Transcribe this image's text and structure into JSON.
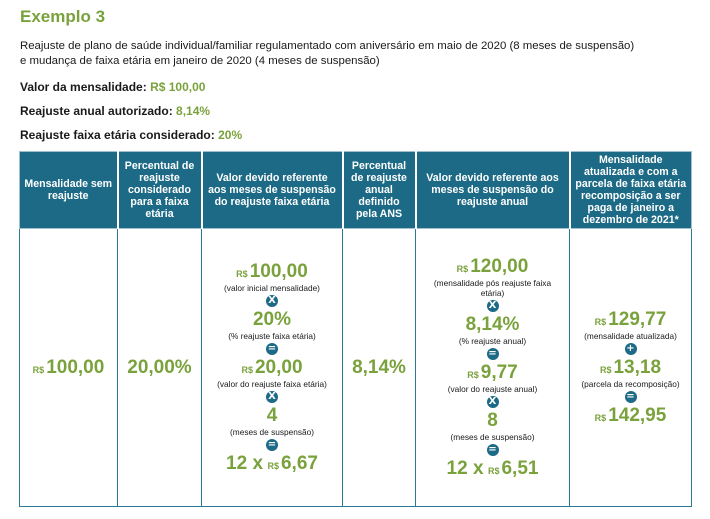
{
  "title": "Exemplo 3",
  "description_line1": "Reajuste de plano de saúde individual/familiar regulamentado com aniversário em maio de 2020 (8 meses de suspensão)",
  "description_line2": "e mudança de faixa etária em janeiro de 2020 (4 meses de suspensão)",
  "info": [
    {
      "label": "Valor da mensalidade:",
      "value": "R$ 100,00"
    },
    {
      "label": "Reajuste anual autorizado:",
      "value": "8,14%"
    },
    {
      "label": "Reajuste faixa etária considerado:",
      "value": "20%"
    }
  ],
  "headers": [
    "Mensalidade sem reajuste",
    "Percentual de reajuste considerado para a faixa etária",
    "Valor devido referente aos meses de suspensão do reajuste faixa etária",
    "Percentual de reajuste anual definido pela ANS",
    "Valor devido referente aos meses de suspensão do reajuste anual",
    "Mensalidade atualizada e com a parcela de faixa etária recomposição a ser paga de janeiro a dezembro de 2021*"
  ],
  "currency": "R$",
  "col1_value": "100,00",
  "col2_value": "20,00%",
  "col3": {
    "v1": "100,00",
    "c1": "(valor inicial mensalidade)",
    "op1": "X",
    "v2": "20%",
    "c2": "(% reajuste faixa etária)",
    "op2": "=",
    "v3": "20,00",
    "c3": "(valor do reajuste faixa etária)",
    "op3": "X",
    "v4": "4",
    "c4": "(meses de suspensão)",
    "op4": "=",
    "mult": "12 x",
    "result": "6,67"
  },
  "col4_value": "8,14%",
  "col5": {
    "v1": "120,00",
    "c1a": "(mensalidade pós reajuste faixa",
    "c1b": "etária)",
    "op1": "X",
    "v2": "8,14%",
    "c2": "(% reajuste anual)",
    "op2": "=",
    "v3": "9,77",
    "c3": "(valor do reajuste anual)",
    "op3": "X",
    "v4": "8",
    "c4": "(meses de suspensão)",
    "op4": "=",
    "mult": "12 x",
    "result": "6,51"
  },
  "col6": {
    "v1": "129,77",
    "c1": "(mensalidade atualizada)",
    "op1": "+",
    "v2": "13,18",
    "c2": "(parcela da recomposição)",
    "op2": "=",
    "v3": "142,95"
  },
  "colors": {
    "green": "#7aa23c",
    "header_blue": "#1c6a86"
  }
}
